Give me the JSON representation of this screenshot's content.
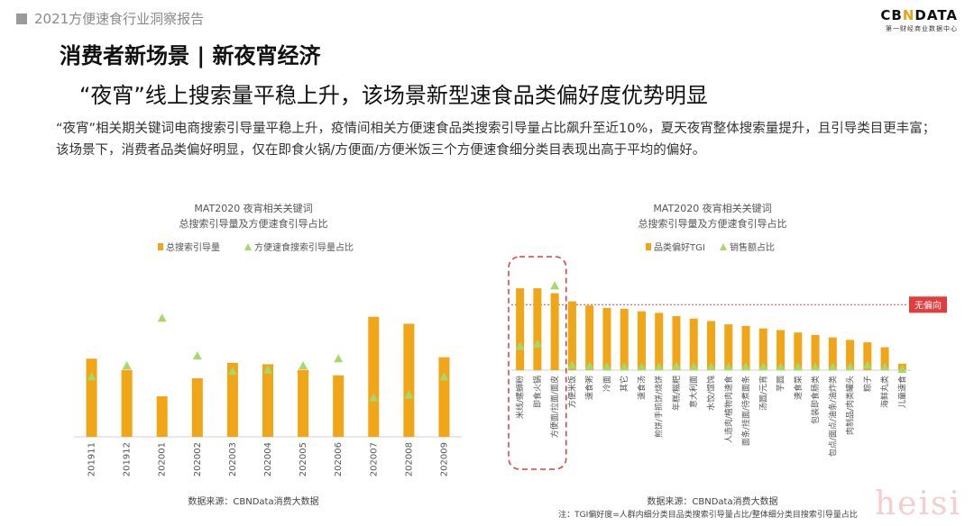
{
  "header": {
    "report_title": "2021方便速食行业洞察报告",
    "brand_logo_left": "CB",
    "brand_logo_mark": "N",
    "brand_logo_right": "DATA",
    "brand_sub": "第一财经商业数据中心"
  },
  "section_title": "消费者新场景 | 新夜宵经济",
  "headline": "“夜宵”线上搜索量平稳上升，该场景新型速食品类偏好度优势明显",
  "summary": "“夜宵”相关期关键词电商搜索引导量平稳上升，疫情间相关方便速食品类搜索引导量占比飙升至近10%，夏天夜宵整体搜索量提升，且引导类目更丰富；该场景下，消费者品类偏好明显，仅在即食火锅/方便面/方便米饭三个方便速食细分类目表现出高于平均的偏好。",
  "colors": {
    "bar": "#f0a616",
    "marker": "#a6d96a",
    "line": "#e43b3b",
    "badge": "#e43b3b",
    "frame": "#e43b3b"
  },
  "chart_data": [
    {
      "type": "bar",
      "title": "MAT2020 夜宵相关关键词",
      "subtitle": "总搜索引导量及方便速食引导占比",
      "categories": [
        "201911",
        "201912",
        "202001",
        "202002",
        "202003",
        "202004",
        "202005",
        "202006",
        "202007",
        "202008",
        "202009"
      ],
      "series": [
        {
          "name": "总搜索引导量",
          "kind": "bar",
          "values": [
            56,
            48,
            29,
            42,
            53,
            52,
            48,
            44,
            86,
            81,
            57
          ]
        },
        {
          "name": "方便速食搜索引导量占比",
          "kind": "marker",
          "values": [
            43,
            51,
            85,
            58,
            47,
            48,
            51,
            56,
            28,
            30,
            43
          ]
        }
      ],
      "ylim": [
        0,
        100
      ],
      "legend": "top",
      "grid": false,
      "source": "数据来源：CBNData消费大数据"
    },
    {
      "type": "bar",
      "title": "MAT2020 夜宵相关关键词",
      "subtitle": "总搜索引导量及方便速食引导占比",
      "categories": [
        "米线/螺蛳粉",
        "即食火锅",
        "方便面/拉面/面皮",
        "方便米饭",
        "速食粥",
        "冷面",
        "其它",
        "速食汤",
        "煎饼/手抓饼/烧饼",
        "年糕/糍粑",
        "意大利面",
        "水饺/馄饨",
        "人造肉/植物肉速食",
        "面条/挂面/待煮面条",
        "汤圆/元宵",
        "芋圆",
        "速食菜",
        "包装即食肠类",
        "包点/面点/油条/油炸类",
        "肉制品/肉类罐头",
        "粽子",
        "海鲜丸类",
        "儿童速食"
      ],
      "series": [
        {
          "name": "品类偏好TGI",
          "kind": "bar",
          "values": [
            100,
            100,
            94,
            84,
            79,
            76,
            75,
            72,
            70,
            66,
            63,
            60,
            56,
            54,
            51,
            49,
            46,
            43,
            40,
            37,
            34,
            28,
            8
          ]
        },
        {
          "name": "销售额占比",
          "kind": "marker",
          "values": [
            29,
            32,
            103,
            6,
            5,
            4,
            4,
            4,
            4,
            5,
            4,
            4,
            4,
            4,
            4,
            4,
            4,
            4,
            4,
            4,
            6,
            4,
            1
          ]
        }
      ],
      "ylim": [
        0,
        110
      ],
      "reference_line": {
        "label": "无偏向",
        "value": 80
      },
      "highlight_categories": [
        "米线/螺蛳粉",
        "即食火锅",
        "方便面/拉面/面皮"
      ],
      "legend": "top",
      "grid": false,
      "source": "数据来源：CBNData消费大数据",
      "note": "注：TGI偏好度=人群内细分类目品类搜索引导量占比/整体细分类目搜索引导量占比"
    }
  ],
  "watermark": "heisi"
}
